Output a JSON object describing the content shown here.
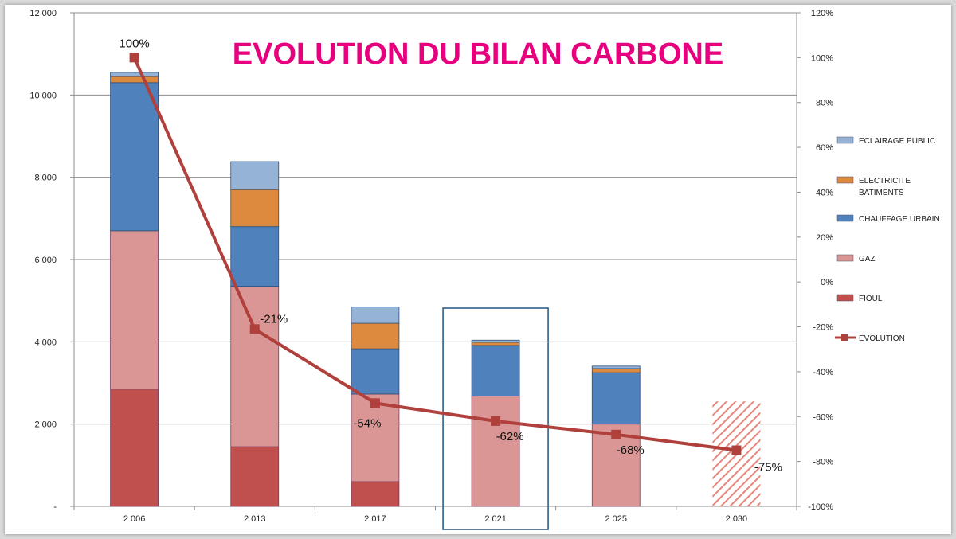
{
  "chart_data": {
    "type": "bar",
    "stacked": true,
    "title": "EVOLUTION DU BILAN CARBONE",
    "title_color": "#e6007e",
    "categories": [
      "2 006",
      "2 013",
      "2 017",
      "2 021",
      "2 025",
      "2 030"
    ],
    "series": [
      {
        "name": "FIOUL",
        "color": "#c0504d",
        "values": [
          2850,
          1450,
          600,
          0,
          0,
          0
        ]
      },
      {
        "name": "GAZ",
        "color": "#d99694",
        "values": [
          3850,
          3900,
          2130,
          2680,
          2000,
          0
        ]
      },
      {
        "name": "CHAUFFAGE URBAIN",
        "color": "#4f81bd",
        "values": [
          3600,
          1450,
          1100,
          1230,
          1250,
          0
        ]
      },
      {
        "name": "ELECTRICITE BATIMENTS",
        "color": "#dd8a3e",
        "values": [
          150,
          900,
          620,
          80,
          100,
          0
        ]
      },
      {
        "name": "ECLAIRAGE PUBLIC",
        "color": "#95b3d7",
        "values": [
          100,
          680,
          400,
          50,
          60,
          0
        ]
      }
    ],
    "target_2030": {
      "category": "2 030",
      "value": 2550,
      "color": "#e8857a",
      "pattern": "diagonal-hatch"
    },
    "line_series": {
      "name": "EVOLUTION",
      "color": "#b0403c",
      "axis": "right",
      "values": [
        100,
        -21,
        -54,
        -62,
        -68,
        -75
      ],
      "labels": [
        "100%",
        "-21%",
        "-54%",
        "-62%",
        "-68%",
        "-75%"
      ]
    },
    "y_left": {
      "range": [
        0,
        12000
      ],
      "ticks": [
        0,
        2000,
        4000,
        6000,
        8000,
        10000,
        12000
      ],
      "tick_labels": [
        "-",
        "2 000",
        "4 000",
        "6 000",
        "8 000",
        "10 000",
        "12 000"
      ]
    },
    "y_right": {
      "range": [
        -100,
        120
      ],
      "ticks": [
        -100,
        -80,
        -60,
        -40,
        -20,
        0,
        20,
        40,
        60,
        80,
        100,
        120
      ],
      "tick_labels": [
        "-100%",
        "-80%",
        "-60%",
        "-40%",
        "-20%",
        "0%",
        "20%",
        "40%",
        "60%",
        "80%",
        "100%",
        "120%"
      ]
    },
    "highlight_category": "2 021",
    "highlight_color": "#2e5f8a",
    "grid": true,
    "legend_position": "right",
    "legend_order": [
      "ECLAIRAGE PUBLIC",
      "ELECTRICITE BATIMENTS",
      "CHAUFFAGE URBAIN",
      "GAZ",
      "FIOUL",
      "EVOLUTION"
    ],
    "legend_labels": {
      "ECLAIRAGE PUBLIC": [
        "ECLAIRAGE PUBLIC"
      ],
      "ELECTRICITE BATIMENTS": [
        "ELECTRICITE",
        "BATIMENTS"
      ],
      "CHAUFFAGE URBAIN": [
        "CHAUFFAGE URBAIN"
      ],
      "GAZ": [
        "GAZ"
      ],
      "FIOUL": [
        "FIOUL"
      ],
      "EVOLUTION": [
        "EVOLUTION"
      ]
    }
  }
}
